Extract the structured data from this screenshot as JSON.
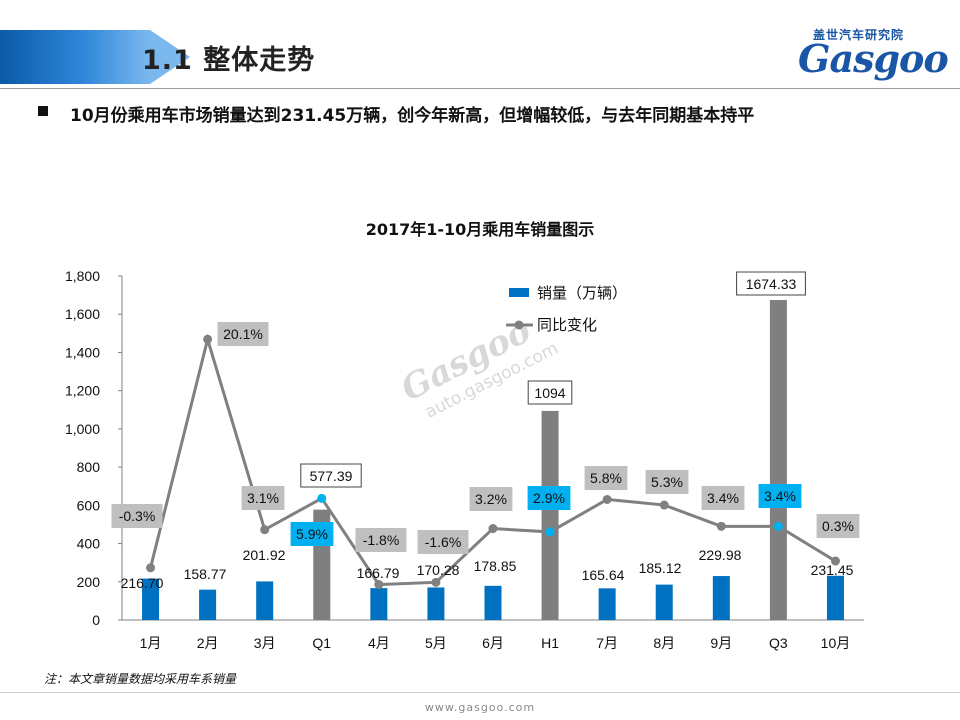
{
  "header": {
    "section_title": "1.1  整体走势",
    "logo_zh": "盖世汽车研究院",
    "logo_en": "Gasgoo"
  },
  "subtitle": "10月份乘用车市场销量达到231.45万辆，创今年新高，但增幅较低，与去年同期基本持平",
  "watermark": {
    "logo": "Gasgoo",
    "url": "auto.gasgoo.com"
  },
  "chart_data": {
    "type": "bar",
    "title": "2017年1-10月乘用车销量图示",
    "categories": [
      "1月",
      "2月",
      "3月",
      "Q1",
      "4月",
      "5月",
      "6月",
      "H1",
      "7月",
      "8月",
      "9月",
      "Q3",
      "10月"
    ],
    "y_ticks": [
      "0",
      "200",
      "400",
      "600",
      "800",
      "1,000",
      "1,200",
      "1,400",
      "1,600",
      "1,800"
    ],
    "ylim": [
      0,
      1800
    ],
    "legend": {
      "placement": "top-center",
      "sales_label": "销量（万辆）",
      "yoy_label": "同比变化"
    },
    "colors": {
      "monthly_bar": "#0070c0",
      "aggregate_bar": "#7f7f7f",
      "line": "#808080",
      "label_box": "#bfbfbf",
      "label_box_aggregate": "#00b0f0"
    },
    "series": [
      {
        "name": "销量（万辆）",
        "kind": "bar",
        "values": [
          216.7,
          158.77,
          201.92,
          577.39,
          166.79,
          170.28,
          178.85,
          1094,
          165.64,
          185.12,
          229.98,
          1674.33,
          231.45
        ],
        "labels": [
          "216.70",
          "158.77",
          "201.92",
          "577.39",
          "166.79",
          "170.28",
          "178.85",
          "1094",
          "165.64",
          "185.12",
          "229.98",
          "1674.33",
          "231.45"
        ],
        "is_aggregate": [
          false,
          false,
          false,
          true,
          false,
          false,
          false,
          true,
          false,
          false,
          false,
          true,
          false
        ]
      },
      {
        "name": "同比变化",
        "kind": "line",
        "values": [
          -0.3,
          20.1,
          3.1,
          5.9,
          -1.8,
          -1.6,
          3.2,
          2.9,
          5.8,
          5.3,
          3.4,
          3.4,
          0.3
        ],
        "labels": [
          "-0.3%",
          "20.1%",
          "3.1%",
          "5.9%",
          "-1.8%",
          "-1.6%",
          "3.2%",
          "2.9%",
          "5.8%",
          "5.3%",
          "3.4%",
          "3.4%",
          "0.3%"
        ]
      }
    ]
  },
  "note": "注：本文章销量数据均采用车系销量",
  "footer": {
    "url": "www.gasgoo.com"
  }
}
